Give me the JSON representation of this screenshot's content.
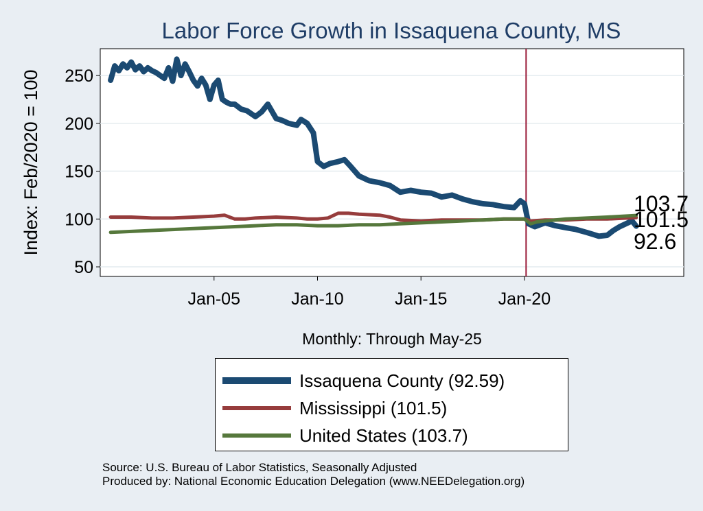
{
  "chart_data": {
    "type": "line",
    "title": "Labor Force Growth in Issaquena  County, MS",
    "xlabel": "Monthly: Through May-25",
    "ylabel": "Index: Feb/2020 = 100",
    "ylim": [
      40,
      278
    ],
    "xlim": [
      1999.5,
      2027.7
    ],
    "x_ticks": [
      {
        "value": 2005,
        "label": "Jan-05"
      },
      {
        "value": 2010,
        "label": "Jan-10"
      },
      {
        "value": 2015,
        "label": "Jan-15"
      },
      {
        "value": 2020,
        "label": "Jan-20"
      }
    ],
    "y_ticks": [
      {
        "value": 50,
        "label": "50"
      },
      {
        "value": 100,
        "label": "100"
      },
      {
        "value": 150,
        "label": "150"
      },
      {
        "value": 200,
        "label": "200"
      },
      {
        "value": 250,
        "label": "250"
      }
    ],
    "reference_line": {
      "x": 2020.08,
      "color": "#9b1c3a"
    },
    "series": [
      {
        "name": "Issaquena  County (92.59)",
        "end_label": "92.6",
        "color": "#1b4a72",
        "x": [
          2000.0,
          2000.2,
          2000.4,
          2000.6,
          2000.8,
          2001.0,
          2001.2,
          2001.4,
          2001.6,
          2001.8,
          2002.0,
          2002.2,
          2002.4,
          2002.6,
          2002.8,
          2003.0,
          2003.2,
          2003.4,
          2003.6,
          2003.8,
          2004.0,
          2004.2,
          2004.4,
          2004.6,
          2004.8,
          2005.0,
          2005.2,
          2005.4,
          2005.6,
          2005.8,
          2006.0,
          2006.3,
          2006.6,
          2007.0,
          2007.3,
          2007.6,
          2008.0,
          2008.3,
          2008.6,
          2009.0,
          2009.2,
          2009.5,
          2009.8,
          2010.0,
          2010.3,
          2010.6,
          2011.0,
          2011.3,
          2011.6,
          2012.0,
          2012.5,
          2013.0,
          2013.5,
          2014.0,
          2014.5,
          2015.0,
          2015.5,
          2016.0,
          2016.5,
          2017.0,
          2017.5,
          2018.0,
          2018.5,
          2019.0,
          2019.5,
          2019.8,
          2020.0,
          2020.2,
          2020.5,
          2021.0,
          2021.5,
          2022.0,
          2022.5,
          2023.0,
          2023.3,
          2023.6,
          2024.0,
          2024.3,
          2024.6,
          2025.0,
          2025.2,
          2025.4
        ],
        "values": [
          245,
          260,
          255,
          262,
          258,
          264,
          256,
          260,
          254,
          258,
          255,
          253,
          250,
          247,
          258,
          244,
          267,
          250,
          262,
          254,
          245,
          239,
          247,
          240,
          225,
          240,
          245,
          225,
          222,
          220,
          220,
          215,
          213,
          207,
          212,
          220,
          205,
          203,
          200,
          198,
          204,
          200,
          190,
          160,
          155,
          158,
          160,
          162,
          155,
          145,
          140,
          138,
          135,
          128,
          130,
          128,
          127,
          123,
          125,
          121,
          118,
          116,
          115,
          113,
          112,
          119,
          116,
          95,
          92,
          96,
          93,
          91,
          89,
          86,
          84,
          82,
          83,
          88,
          92,
          96,
          98,
          92.6
        ]
      },
      {
        "name": "Mississippi (101.5)",
        "end_label": "101.5",
        "color": "#963c3c",
        "x": [
          2000.0,
          2001.0,
          2002.0,
          2003.0,
          2004.0,
          2005.0,
          2005.5,
          2006.0,
          2006.5,
          2007.0,
          2008.0,
          2009.0,
          2009.5,
          2010.0,
          2010.5,
          2011.0,
          2011.5,
          2012.0,
          2013.0,
          2013.5,
          2014.0,
          2015.0,
          2016.0,
          2017.0,
          2018.0,
          2019.0,
          2020.0,
          2020.3,
          2021.0,
          2022.0,
          2023.0,
          2024.0,
          2025.4
        ],
        "values": [
          102,
          102,
          101,
          101,
          102,
          103,
          104,
          100,
          100,
          101,
          102,
          101,
          100,
          100,
          101,
          106,
          106,
          105,
          104,
          102,
          99,
          98,
          99,
          99,
          99,
          100,
          100,
          98,
          99,
          99,
          100,
          100,
          101.5
        ]
      },
      {
        "name": "United States (103.7)",
        "end_label": "103.7",
        "color": "#56783c",
        "x": [
          2000.0,
          2001.0,
          2002.0,
          2003.0,
          2004.0,
          2005.0,
          2006.0,
          2007.0,
          2008.0,
          2009.0,
          2010.0,
          2011.0,
          2012.0,
          2013.0,
          2014.0,
          2015.0,
          2016.0,
          2017.0,
          2018.0,
          2019.0,
          2020.0,
          2020.3,
          2020.6,
          2021.0,
          2021.5,
          2022.0,
          2023.0,
          2024.0,
          2025.4
        ],
        "values": [
          86,
          87,
          88,
          89,
          90,
          91,
          92,
          93,
          94,
          94,
          93,
          93,
          94,
          94,
          95,
          96,
          97,
          98,
          99,
          100,
          100,
          95,
          97,
          98,
          99,
          100,
          101,
          102,
          103.7
        ]
      }
    ]
  },
  "notes": {
    "source": "Source: U.S. Bureau of Labor Statistics, Seasonally Adjusted",
    "produced_by": "Produced by: National Economic Education Delegation (www.NEEDelegation.org)"
  }
}
